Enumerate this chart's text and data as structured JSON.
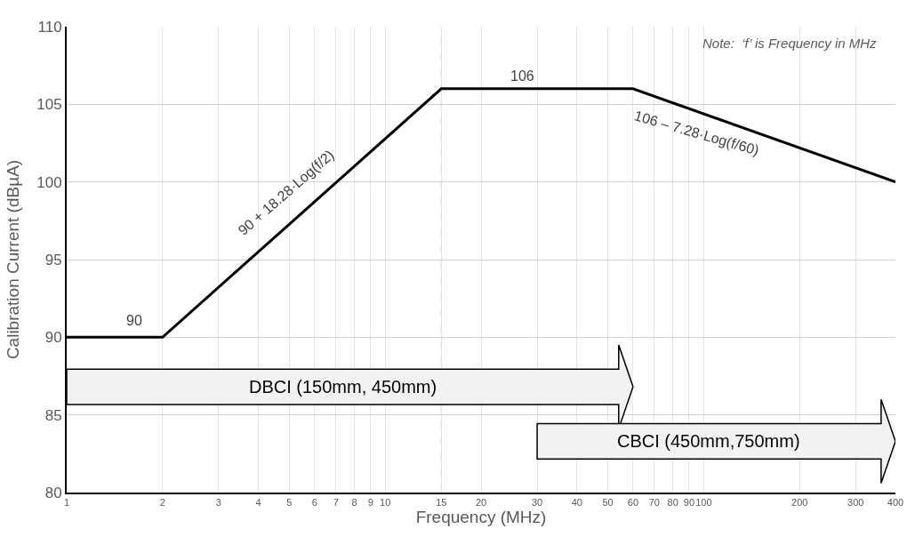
{
  "chart_data": {
    "type": "line",
    "xlabel": "Frequency (MHz)",
    "ylabel": "Calibration Current (dBµA)",
    "x": [
      1,
      2,
      15,
      60,
      400
    ],
    "series": [
      {
        "color": "#000000",
        "values": [
          90,
          90,
          106,
          106,
          100
        ]
      }
    ],
    "log": "x",
    "xlim": [
      1,
      400
    ],
    "ylim": [
      80,
      110
    ],
    "xticks": [
      {
        "value": 1,
        "label": "1"
      },
      {
        "value": 2,
        "label": "2"
      },
      {
        "value": 3,
        "label": "3"
      },
      {
        "value": 4,
        "label": "4"
      },
      {
        "value": 5,
        "label": "5"
      },
      {
        "value": 6,
        "label": "6"
      },
      {
        "value": 7,
        "label": "7"
      },
      {
        "value": 8,
        "label": "8"
      },
      {
        "value": 9,
        "label": "9"
      },
      {
        "value": 10,
        "label": "10"
      },
      {
        "value": 15,
        "label": "15"
      },
      {
        "value": 20,
        "label": "20"
      },
      {
        "value": 30,
        "label": "30"
      },
      {
        "value": 40,
        "label": "40"
      },
      {
        "value": 50,
        "label": "50"
      },
      {
        "value": 60,
        "label": "60"
      },
      {
        "value": 70,
        "label": "70"
      },
      {
        "value": 80,
        "label": "80"
      },
      {
        "value": 90,
        "label": "90"
      },
      {
        "value": 100,
        "label": "100"
      },
      {
        "value": 200,
        "label": "200"
      },
      {
        "value": 300,
        "label": "300"
      },
      {
        "value": 400,
        "label": "400"
      }
    ],
    "yticks": [
      80,
      85,
      90,
      95,
      100,
      105,
      110
    ],
    "grid": true,
    "marker": "none",
    "line_style": "solid",
    "ref_lines": [
      {
        "axis": "x",
        "value": 15,
        "label": null,
        "color": "#bfbfbf",
        "line_style": "dashed"
      }
    ],
    "bands": [
      {
        "axis": "x",
        "from": 1,
        "to": 60,
        "label": "DBCI (150mm, 450mm)",
        "color": "#f2f2f2"
      },
      {
        "axis": "x",
        "from": 30,
        "to": 400,
        "label": "CBCI (450mm,750mm)",
        "color": "#f2f2f2"
      }
    ],
    "annotations": [
      "90",
      "106",
      "90 + 18.28·Log(f/2)",
      "106 – 7.28·Log(f/60)",
      "Note:  ‘f’ is Frequency in MHz"
    ]
  }
}
